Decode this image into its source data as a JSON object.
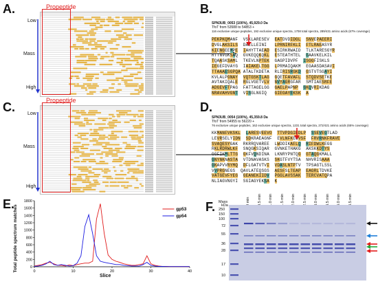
{
  "panels": {
    "A": {
      "label": "A.",
      "propeptide": "Propeptide",
      "low": "Low",
      "mass": "Mass",
      "high": "High"
    },
    "B": {
      "label": "B.",
      "header1": "SPN3UB_0053 (100%), 45,929.0 Da",
      "header2": "TfoT from 53588 to 54853 +",
      "header3": "116 exclusive unique peptides, 192 exclusive unique spectra, 1708 total spectra, 289/431 amino acids (67% coverage)",
      "sequence": [
        "PEKPKQMANF  VSKLARESEV  EATDVDIDGL  SNVEPAEERI",
        "DVGLAKSILS  DAELLEINI   LPRNIRFKLI  FTLRAEASYR",
        "KIENGEEMPE  IAHYTTAEAD  ESIRKRWAID  TLKTARESGYR",
        "RTTNVGKSAQ  GVKEQQKQKL  ESTEATHTEL  GAAVKELKIL",
        "TQAASKSAML  TKEVLNPTEK  GAGPIDVPF  ISGGFISKLS",
        "IEGEFDVAYG  IAIAKELTGG  LPRMAIQAKM  EGAASDASAVI",
        "TTAAAESGPQA ATALTKDETA  RLIRISRGKD  GSTVTSGAYI",
        "KVLALPGNAY  VQTGSKTLAG  GQETFAVAFL  STQDVSETKE",
        "AVTAKIQALE  RGLVGETVLV  NVYAGRGFAR  SMTIAESRFE",
        "ADGEVFTPAG  FATTAGELGG  GAELPAPNP  GKQVRIKDAG",
        "NRAVAHVGNT  VISGLNGIQ   GIEGAYEKSK  A"
      ]
    },
    "C": {
      "label": "C.",
      "propeptide": "Propeptide",
      "low": "Low",
      "mass": "Mass",
      "high": "High"
    },
    "D": {
      "label": "D.",
      "header1": "SPN3UB_0054 (100%), 45,359.8 Da",
      "header2": "TfoT from 54955 to 56220 +",
      "header3": "76 exclusive unique peptides, 162 exclusive unique spectra, 1231 total spectra, 272/421 amino acids (65% coverage)",
      "sequence": [
        "KKMANFVKSKL  LARESVEEVO  TTVPDGIEDLP  SSEVEGTLAD",
        "LEVRSELYIDN  SDKRAEAGNF  EVLNFKEGVSF  FRVRNKFRAVE",
        "SVAQESYGAK  RKRRQVAREE  LWDDIKAFLQ  RIFDWLKEGG",
        "RKLRDRWLKF  SNQGKSIQAR  GVNKETHAKG  AKSKKDTYS",
        "GGFIKMLTTG  GKFVQNDINA  LKNRYPNTQG  GTAQGKMALL",
        "GNYNKNASTA  VTDNAVASKS  SKGTFVYTSA  NHVRISAAA",
        "GKAPVVRYMQ  DFLGATVTVI  VDASLNTPTV  TPSAGTLSSL",
        "VVPRGNEGS  QAVLATEQSGS  AESFSLTEAP  EAGRLTDVKE",
        "VATGEVFYEG  GEANEKIIDV  PGGLAVSSAK  TERCVATQPA",
        "NLIAGVNGYI  SGIAGYEKSA  K"
      ]
    },
    "E": {
      "label": "E.",
      "chart_data": {
        "type": "line",
        "xlabel": "Slice",
        "ylabel": "Total peptide spectrum matches",
        "xlim": [
          0,
          40
        ],
        "ylim": [
          0,
          1800
        ],
        "xticks": [
          0,
          10,
          20,
          30,
          40
        ],
        "yticks": [
          0,
          200,
          400,
          600,
          800,
          1000,
          1200,
          1400,
          1600,
          1800
        ],
        "x": [
          0,
          1,
          2,
          3,
          4,
          5,
          6,
          7,
          8,
          9,
          10,
          11,
          12,
          13,
          14,
          15,
          16,
          17,
          18,
          19,
          20,
          21,
          22,
          23,
          24,
          25,
          26,
          27,
          28,
          29,
          30,
          31,
          32,
          33,
          34,
          35,
          36,
          37,
          38,
          39,
          40
        ],
        "series": [
          {
            "name": "gp53",
            "color": "#e01a1a",
            "values": [
              20,
              40,
              60,
              100,
              120,
              80,
              40,
              40,
              20,
              50,
              30,
              60,
              80,
              100,
              100,
              150,
              1300,
              1720,
              900,
              320,
              200,
              150,
              120,
              80,
              60,
              40,
              40,
              60,
              80,
              300,
              80,
              40,
              20,
              10,
              10,
              5,
              5,
              5,
              5,
              5,
              5
            ]
          },
          {
            "name": "gp54",
            "color": "#1a1ae0",
            "values": [
              10,
              20,
              40,
              80,
              150,
              60,
              40,
              60,
              40,
              20,
              30,
              100,
              300,
              1100,
              1420,
              900,
              300,
              150,
              120,
              100,
              80,
              60,
              60,
              40,
              30,
              20,
              20,
              20,
              60,
              120,
              40,
              20,
              10,
              10,
              5,
              5,
              5,
              5,
              5,
              5,
              5
            ]
          }
        ]
      }
    },
    "F": {
      "label": "F.",
      "mass_header": "Mass",
      "kda": "kDa",
      "markers": [
        "250",
        "150",
        "100",
        "72",
        "55",
        "36",
        "28",
        "17",
        "10"
      ],
      "lanes": [
        "0 min",
        "0.5 min",
        "1.0 min",
        "1.5 min",
        "2.0 min",
        "2.5 min",
        "3.0 min",
        "3.5 min",
        "4.0 min",
        "4.5 min"
      ],
      "gel_bg": "#c9cde4",
      "band_color": "#3d45a8",
      "arrows": [
        {
          "color": "#111111"
        },
        {
          "color": "#1e7fd8"
        },
        {
          "color": "#e21b1b"
        },
        {
          "color": "#22a83a"
        },
        {
          "color": "#e21b1b"
        }
      ]
    }
  }
}
